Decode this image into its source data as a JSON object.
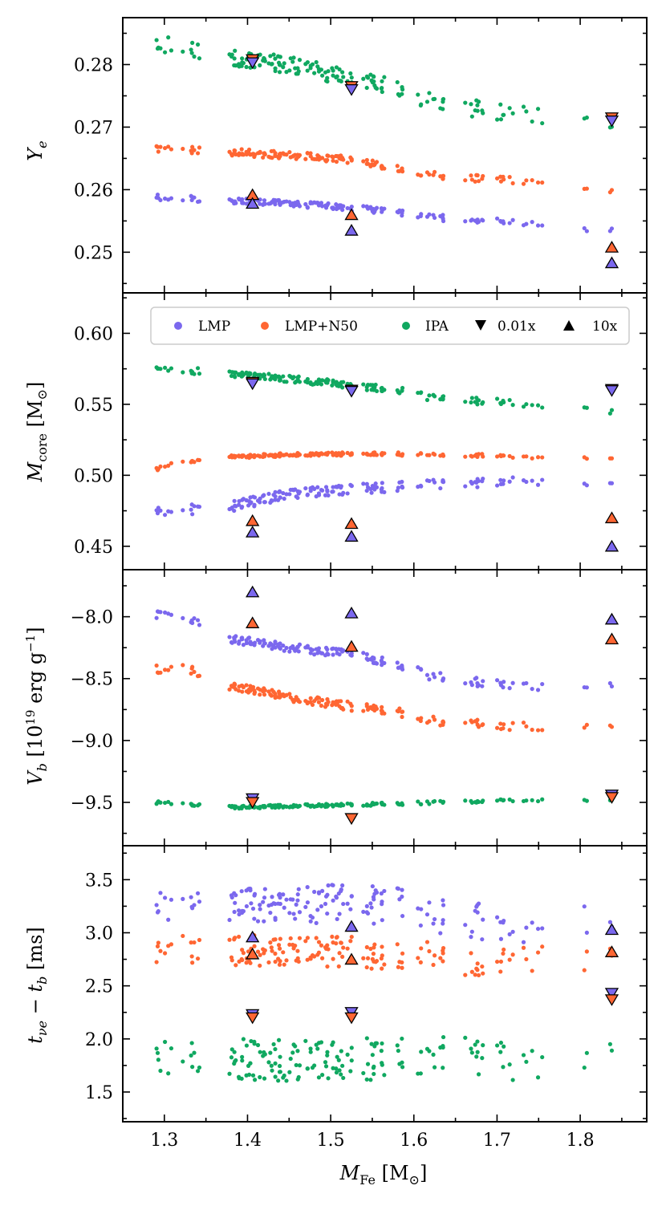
{
  "chart_data": {
    "type": "scatter",
    "xlabel": "M_Fe [M_sun]",
    "xlim": [
      1.25,
      1.88
    ],
    "x_ticks": [
      1.3,
      1.4,
      1.5,
      1.6,
      1.7,
      1.8
    ],
    "x_tick_labels": [
      "1.3",
      "1.4",
      "1.5",
      "1.6",
      "1.7",
      "1.8"
    ],
    "colors": {
      "LMP": "#7b68ee",
      "LMP+N50": "#ff6633",
      "IPA": "#10a860"
    },
    "legend": {
      "placement": "top (second panel)",
      "entries": [
        {
          "label": "LMP",
          "marker": "circle",
          "color": "#7b68ee"
        },
        {
          "label": "LMP+N50",
          "marker": "circle",
          "color": "#ff6633"
        },
        {
          "label": "IPA",
          "marker": "circle",
          "color": "#10a860"
        },
        {
          "label": "0.01x",
          "marker": "triangle-down",
          "color": "#000000"
        },
        {
          "label": "10x",
          "marker": "triangle-up",
          "color": "#000000"
        }
      ]
    },
    "panels": [
      {
        "id": "ye",
        "ylabel": "Y_e",
        "ylim": [
          0.2435,
          0.2875
        ],
        "y_ticks": [
          0.25,
          0.26,
          0.27,
          0.28
        ],
        "y_tick_labels": [
          "0.25",
          "0.26",
          "0.27",
          "0.28"
        ],
        "series": [
          {
            "name": "IPA",
            "color": "#10a860",
            "trend": [
              [
                1.29,
                0.2833
              ],
              [
                1.38,
                0.2812
              ],
              [
                1.45,
                0.28
              ],
              [
                1.52,
                0.278
              ],
              [
                1.58,
                0.2765
              ],
              [
                1.62,
                0.274
              ],
              [
                1.68,
                0.2728
              ],
              [
                1.75,
                0.2718
              ],
              [
                1.83,
                0.2702
              ]
            ],
            "jitter": 0.0014
          },
          {
            "name": "LMP+N50",
            "color": "#ff6633",
            "trend": [
              [
                1.29,
                0.2665
              ],
              [
                1.38,
                0.266
              ],
              [
                1.45,
                0.2655
              ],
              [
                1.52,
                0.2648
              ],
              [
                1.58,
                0.2635
              ],
              [
                1.62,
                0.2625
              ],
              [
                1.68,
                0.2617
              ],
              [
                1.75,
                0.2612
              ],
              [
                1.83,
                0.2598
              ]
            ],
            "jitter": 0.0006
          },
          {
            "name": "LMP",
            "color": "#7b68ee",
            "trend": [
              [
                1.29,
                0.2588
              ],
              [
                1.38,
                0.2582
              ],
              [
                1.45,
                0.2578
              ],
              [
                1.52,
                0.2572
              ],
              [
                1.58,
                0.2563
              ],
              [
                1.62,
                0.2556
              ],
              [
                1.68,
                0.2551
              ],
              [
                1.75,
                0.2547
              ],
              [
                1.83,
                0.2535
              ]
            ],
            "jitter": 0.0005
          }
        ],
        "markers": [
          {
            "kind": "0.01x",
            "color": "#ff6633",
            "x": 1.406,
            "y": 0.2808
          },
          {
            "kind": "0.01x",
            "color": "#7b68ee",
            "x": 1.406,
            "y": 0.2803
          },
          {
            "kind": "0.01x",
            "color": "#ff6633",
            "x": 1.525,
            "y": 0.2765
          },
          {
            "kind": "0.01x",
            "color": "#7b68ee",
            "x": 1.525,
            "y": 0.276
          },
          {
            "kind": "0.01x",
            "color": "#ff6633",
            "x": 1.838,
            "y": 0.2715
          },
          {
            "kind": "0.01x",
            "color": "#7b68ee",
            "x": 1.838,
            "y": 0.271
          },
          {
            "kind": "10x",
            "color": "#ff6633",
            "x": 1.406,
            "y": 0.2592
          },
          {
            "kind": "10x",
            "color": "#7b68ee",
            "x": 1.406,
            "y": 0.2578
          },
          {
            "kind": "10x",
            "color": "#ff6633",
            "x": 1.525,
            "y": 0.256
          },
          {
            "kind": "10x",
            "color": "#7b68ee",
            "x": 1.525,
            "y": 0.2535
          },
          {
            "kind": "10x",
            "color": "#ff6633",
            "x": 1.838,
            "y": 0.2508
          },
          {
            "kind": "10x",
            "color": "#7b68ee",
            "x": 1.838,
            "y": 0.2483
          }
        ]
      },
      {
        "id": "mcore",
        "ylabel": "M_core [M_sun]",
        "ylim": [
          0.4335,
          0.6285
        ],
        "y_ticks": [
          0.45,
          0.5,
          0.55,
          0.6
        ],
        "y_tick_labels": [
          "0.45",
          "0.50",
          "0.55",
          "0.60"
        ],
        "series": [
          {
            "name": "IPA",
            "color": "#10a860",
            "trend": [
              [
                1.29,
                0.576
              ],
              [
                1.38,
                0.571
              ],
              [
                1.45,
                0.568
              ],
              [
                1.52,
                0.564
              ],
              [
                1.58,
                0.56
              ],
              [
                1.62,
                0.555
              ],
              [
                1.68,
                0.552
              ],
              [
                1.75,
                0.55
              ],
              [
                1.83,
                0.546
              ]
            ],
            "jitter": 0.0025
          },
          {
            "name": "LMP+N50",
            "color": "#ff6633",
            "trend": [
              [
                1.29,
                0.504
              ],
              [
                1.31,
                0.509
              ],
              [
                1.38,
                0.513
              ],
              [
                1.45,
                0.5145
              ],
              [
                1.52,
                0.515
              ],
              [
                1.58,
                0.515
              ],
              [
                1.68,
                0.514
              ],
              [
                1.75,
                0.513
              ],
              [
                1.83,
                0.511
              ]
            ],
            "jitter": 0.0012
          },
          {
            "name": "LMP",
            "color": "#7b68ee",
            "trend": [
              [
                1.29,
                0.474
              ],
              [
                1.38,
                0.478
              ],
              [
                1.45,
                0.487
              ],
              [
                1.52,
                0.49
              ],
              [
                1.58,
                0.492
              ],
              [
                1.62,
                0.494
              ],
              [
                1.68,
                0.495
              ],
              [
                1.75,
                0.495
              ],
              [
                1.83,
                0.492
              ]
            ],
            "jitter": 0.0035
          }
        ],
        "markers": [
          {
            "kind": "0.01x",
            "color": "#ff6633",
            "x": 1.406,
            "y": 0.5655
          },
          {
            "kind": "0.01x",
            "color": "#7b68ee",
            "x": 1.406,
            "y": 0.5645
          },
          {
            "kind": "0.01x",
            "color": "#ff6633",
            "x": 1.525,
            "y": 0.56
          },
          {
            "kind": "0.01x",
            "color": "#7b68ee",
            "x": 1.525,
            "y": 0.5592
          },
          {
            "kind": "0.01x",
            "color": "#ff6633",
            "x": 1.838,
            "y": 0.5605
          },
          {
            "kind": "0.01x",
            "color": "#7b68ee",
            "x": 1.838,
            "y": 0.5597
          },
          {
            "kind": "10x",
            "color": "#ff6633",
            "x": 1.406,
            "y": 0.468
          },
          {
            "kind": "10x",
            "color": "#7b68ee",
            "x": 1.406,
            "y": 0.46
          },
          {
            "kind": "10x",
            "color": "#ff6633",
            "x": 1.525,
            "y": 0.466
          },
          {
            "kind": "10x",
            "color": "#7b68ee",
            "x": 1.525,
            "y": 0.457
          },
          {
            "kind": "10x",
            "color": "#ff6633",
            "x": 1.838,
            "y": 0.47
          },
          {
            "kind": "10x",
            "color": "#7b68ee",
            "x": 1.838,
            "y": 0.45
          }
        ]
      },
      {
        "id": "vb",
        "ylabel": "V_b [10^19 erg g^-1]",
        "ylim": [
          -9.85,
          -7.62
        ],
        "y_ticks": [
          -9.5,
          -9.0,
          -8.5,
          -8.0
        ],
        "y_tick_labels": [
          "−9.5",
          "−9.0",
          "−8.5",
          "−8.0"
        ],
        "series": [
          {
            "name": "LMP",
            "color": "#7b68ee",
            "trend": [
              [
                1.29,
                -7.98
              ],
              [
                1.33,
                -8.02
              ],
              [
                1.38,
                -8.18
              ],
              [
                1.45,
                -8.25
              ],
              [
                1.52,
                -8.3
              ],
              [
                1.58,
                -8.38
              ],
              [
                1.62,
                -8.48
              ],
              [
                1.68,
                -8.53
              ],
              [
                1.75,
                -8.56
              ],
              [
                1.83,
                -8.57
              ]
            ],
            "jitter": 0.035
          },
          {
            "name": "LMP+N50",
            "color": "#ff6633",
            "trend": [
              [
                1.29,
                -8.42
              ],
              [
                1.33,
                -8.42
              ],
              [
                1.38,
                -8.56
              ],
              [
                1.45,
                -8.65
              ],
              [
                1.52,
                -8.72
              ],
              [
                1.58,
                -8.77
              ],
              [
                1.62,
                -8.84
              ],
              [
                1.68,
                -8.87
              ],
              [
                1.75,
                -8.89
              ],
              [
                1.83,
                -8.91
              ]
            ],
            "jitter": 0.035
          },
          {
            "name": "IPA",
            "color": "#10a860",
            "trend": [
              [
                1.29,
                -9.5
              ],
              [
                1.38,
                -9.54
              ],
              [
                1.45,
                -9.53
              ],
              [
                1.52,
                -9.52
              ],
              [
                1.58,
                -9.51
              ],
              [
                1.68,
                -9.49
              ],
              [
                1.75,
                -9.48
              ],
              [
                1.83,
                -9.48
              ]
            ],
            "jitter": 0.012
          }
        ],
        "markers": [
          {
            "kind": "10x",
            "color": "#7b68ee",
            "x": 1.406,
            "y": -7.8
          },
          {
            "kind": "10x",
            "color": "#ff6633",
            "x": 1.406,
            "y": -8.05
          },
          {
            "kind": "10x",
            "color": "#7b68ee",
            "x": 1.525,
            "y": -7.97
          },
          {
            "kind": "10x",
            "color": "#ff6633",
            "x": 1.525,
            "y": -8.24
          },
          {
            "kind": "10x",
            "color": "#7b68ee",
            "x": 1.838,
            "y": -8.02
          },
          {
            "kind": "10x",
            "color": "#ff6633",
            "x": 1.838,
            "y": -8.18
          },
          {
            "kind": "0.01x",
            "color": "#7b68ee",
            "x": 1.406,
            "y": -9.47
          },
          {
            "kind": "0.01x",
            "color": "#ff6633",
            "x": 1.406,
            "y": -9.5
          },
          {
            "kind": "0.01x",
            "color": "#ff6633",
            "x": 1.525,
            "y": -9.63
          },
          {
            "kind": "0.01x",
            "color": "#7b68ee",
            "x": 1.838,
            "y": -9.44
          },
          {
            "kind": "0.01x",
            "color": "#ff6633",
            "x": 1.838,
            "y": -9.46
          }
        ]
      },
      {
        "id": "tnu",
        "ylabel": "t_nu_e − t_b [ms]",
        "ylim": [
          1.22,
          3.82
        ],
        "y_ticks": [
          1.5,
          2.0,
          2.5,
          3.0,
          3.5
        ],
        "y_tick_labels": [
          "1.5",
          "2.0",
          "2.5",
          "3.0",
          "3.5"
        ],
        "series": [
          {
            "name": "LMP",
            "color": "#7b68ee",
            "trend": [
              [
                1.29,
                3.3
              ],
              [
                1.38,
                3.3
              ],
              [
                1.45,
                3.25
              ],
              [
                1.52,
                3.28
              ],
              [
                1.58,
                3.25
              ],
              [
                1.62,
                3.15
              ],
              [
                1.68,
                3.1
              ],
              [
                1.75,
                3.08
              ],
              [
                1.83,
                3.15
              ]
            ],
            "jitter": 0.18
          },
          {
            "name": "LMP+N50",
            "color": "#ff6633",
            "trend": [
              [
                1.29,
                2.85
              ],
              [
                1.38,
                2.84
              ],
              [
                1.45,
                2.82
              ],
              [
                1.52,
                2.82
              ],
              [
                1.58,
                2.8
              ],
              [
                1.62,
                2.76
              ],
              [
                1.68,
                2.74
              ],
              [
                1.75,
                2.72
              ],
              [
                1.83,
                2.8
              ]
            ],
            "jitter": 0.15
          },
          {
            "name": "IPA",
            "color": "#10a860",
            "trend": [
              [
                1.29,
                1.85
              ],
              [
                1.38,
                1.8
              ],
              [
                1.45,
                1.8
              ],
              [
                1.52,
                1.8
              ],
              [
                1.58,
                1.82
              ],
              [
                1.62,
                1.85
              ],
              [
                1.68,
                1.8
              ],
              [
                1.75,
                1.78
              ],
              [
                1.83,
                1.86
              ]
            ],
            "jitter": 0.2
          }
        ],
        "markers": [
          {
            "kind": "10x",
            "color": "#7b68ee",
            "x": 1.406,
            "y": 2.96
          },
          {
            "kind": "10x",
            "color": "#ff6633",
            "x": 1.406,
            "y": 2.8
          },
          {
            "kind": "10x",
            "color": "#7b68ee",
            "x": 1.525,
            "y": 3.06
          },
          {
            "kind": "10x",
            "color": "#ff6633",
            "x": 1.525,
            "y": 2.75
          },
          {
            "kind": "10x",
            "color": "#7b68ee",
            "x": 1.838,
            "y": 3.03
          },
          {
            "kind": "10x",
            "color": "#ff6633",
            "x": 1.838,
            "y": 2.82
          },
          {
            "kind": "0.01x",
            "color": "#7b68ee",
            "x": 1.406,
            "y": 2.23
          },
          {
            "kind": "0.01x",
            "color": "#ff6633",
            "x": 1.406,
            "y": 2.2
          },
          {
            "kind": "0.01x",
            "color": "#7b68ee",
            "x": 1.525,
            "y": 2.25
          },
          {
            "kind": "0.01x",
            "color": "#ff6633",
            "x": 1.525,
            "y": 2.2
          },
          {
            "kind": "0.01x",
            "color": "#7b68ee",
            "x": 1.838,
            "y": 2.43
          },
          {
            "kind": "0.01x",
            "color": "#ff6633",
            "x": 1.838,
            "y": 2.37
          }
        ]
      }
    ]
  }
}
